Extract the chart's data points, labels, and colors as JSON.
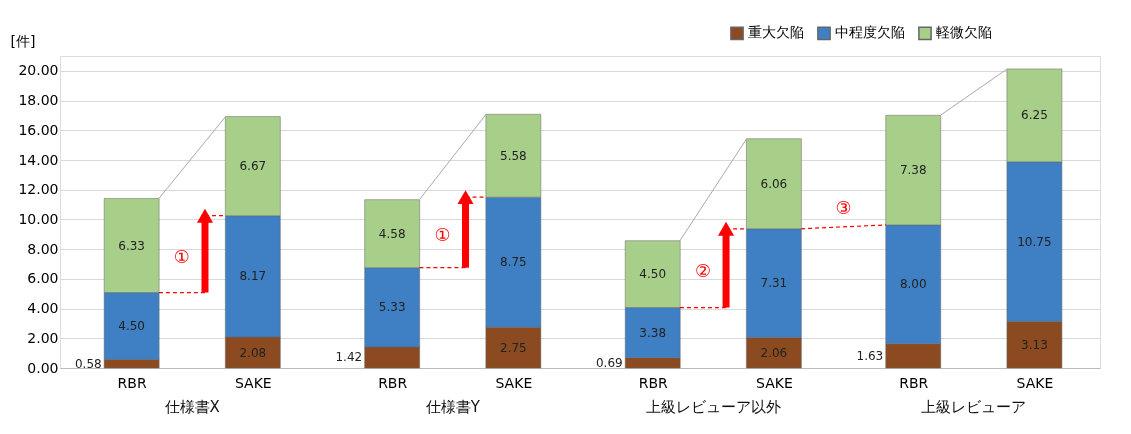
{
  "chart_data": {
    "type": "bar",
    "stacked": true,
    "ylabel": "[件]",
    "categories": [
      "RBR",
      "SAKE",
      "RBR",
      "SAKE",
      "RBR",
      "SAKE",
      "RBR",
      "SAKE"
    ],
    "series": [
      {
        "name": "重大欠陥",
        "color": "#8b4a1f",
        "values": [
          0.58,
          2.08,
          1.42,
          2.75,
          0.69,
          2.06,
          1.63,
          3.13
        ]
      },
      {
        "name": "中程度欠陥",
        "color": "#3f7fc4",
        "values": [
          4.5,
          8.17,
          5.33,
          8.75,
          3.38,
          7.31,
          8.0,
          10.75
        ]
      },
      {
        "name": "軽微欠陥",
        "color": "#a8cf8a",
        "values": [
          6.33,
          6.67,
          4.58,
          5.58,
          4.5,
          6.06,
          7.38,
          6.25
        ]
      }
    ],
    "ylim": [
      0,
      21
    ],
    "yticks": [
      {
        "value": 0,
        "label": "0.00"
      },
      {
        "value": 2,
        "label": "2.00"
      },
      {
        "value": 4,
        "label": "4.00"
      },
      {
        "value": 6,
        "label": "6.00"
      },
      {
        "value": 8,
        "label": "8.00"
      },
      {
        "value": 10,
        "label": "10.00"
      },
      {
        "value": 12,
        "label": "12.00"
      },
      {
        "value": 14,
        "label": "14.00"
      },
      {
        "value": 16,
        "label": "16.00"
      },
      {
        "value": 18,
        "label": "18.00"
      },
      {
        "value": 20,
        "label": "20.00"
      }
    ],
    "grid": "y",
    "legend": "top right",
    "value_labels": [
      [
        "0.58",
        "2.08",
        "1.42",
        "2.75",
        "0.69",
        "2.06",
        "1.63",
        "3.13"
      ],
      [
        "4.50",
        "8.17",
        "5.33",
        "8.75",
        "3.38",
        "7.31",
        "8.00",
        "10.75"
      ],
      [
        "6.33",
        "6.67",
        "4.58",
        "5.58",
        "4.50",
        "6.06",
        "7.38",
        "6.25"
      ]
    ],
    "annotations": [
      "仕様書X",
      "仕様書Y",
      "上級レビューア以外",
      "上級レビューア",
      "①",
      "①",
      "②",
      "③"
    ]
  }
}
